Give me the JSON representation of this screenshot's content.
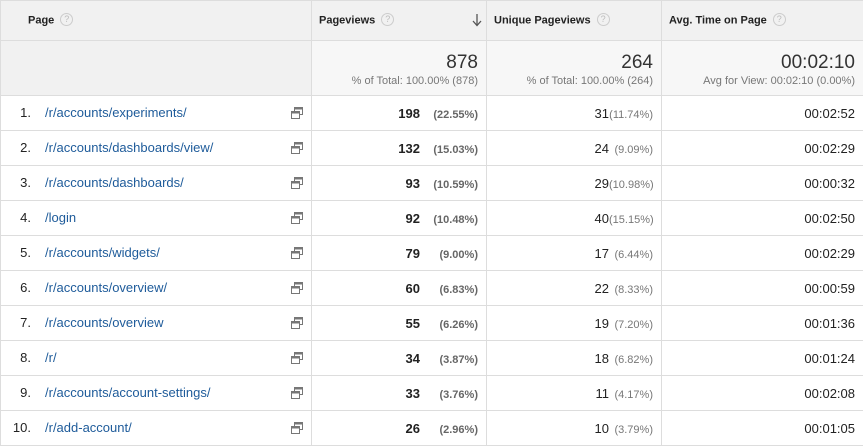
{
  "columns": {
    "page": "Page",
    "pageviews": "Pageviews",
    "unique_pageviews": "Unique Pageviews",
    "avg_time": "Avg. Time on Page",
    "help_glyph": "?"
  },
  "totals": {
    "pageviews": "878",
    "pageviews_sub": "% of Total: 100.00% (878)",
    "unique_pageviews": "264",
    "unique_pageviews_sub": "% of Total: 100.00% (264)",
    "avg_time": "00:02:10",
    "avg_time_sub": "Avg for View: 00:02:10 (0.00%)"
  },
  "rows": [
    {
      "idx": "1.",
      "page": "/r/accounts/experiments/",
      "pv": "198",
      "pv_pct": "(22.55%)",
      "upv": "31",
      "upv_pct": "(11.74%)",
      "avg": "00:02:52"
    },
    {
      "idx": "2.",
      "page": "/r/accounts/dashboards/view/",
      "pv": "132",
      "pv_pct": "(15.03%)",
      "upv": "24",
      "upv_pct": "(9.09%)",
      "avg": "00:02:29"
    },
    {
      "idx": "3.",
      "page": "/r/accounts/dashboards/",
      "pv": "93",
      "pv_pct": "(10.59%)",
      "upv": "29",
      "upv_pct": "(10.98%)",
      "avg": "00:00:32"
    },
    {
      "idx": "4.",
      "page": "/login",
      "pv": "92",
      "pv_pct": "(10.48%)",
      "upv": "40",
      "upv_pct": "(15.15%)",
      "avg": "00:02:50"
    },
    {
      "idx": "5.",
      "page": "/r/accounts/widgets/",
      "pv": "79",
      "pv_pct": "(9.00%)",
      "upv": "17",
      "upv_pct": "(6.44%)",
      "avg": "00:02:29"
    },
    {
      "idx": "6.",
      "page": "/r/accounts/overview/",
      "pv": "60",
      "pv_pct": "(6.83%)",
      "upv": "22",
      "upv_pct": "(8.33%)",
      "avg": "00:00:59"
    },
    {
      "idx": "7.",
      "page": "/r/accounts/overview",
      "pv": "55",
      "pv_pct": "(6.26%)",
      "upv": "19",
      "upv_pct": "(7.20%)",
      "avg": "00:01:36"
    },
    {
      "idx": "8.",
      "page": "/r/",
      "pv": "34",
      "pv_pct": "(3.87%)",
      "upv": "18",
      "upv_pct": "(6.82%)",
      "avg": "00:01:24"
    },
    {
      "idx": "9.",
      "page": "/r/accounts/account-settings/",
      "pv": "33",
      "pv_pct": "(3.76%)",
      "upv": "11",
      "upv_pct": "(4.17%)",
      "avg": "00:02:08"
    },
    {
      "idx": "10.",
      "page": "/r/add-account/",
      "pv": "26",
      "pv_pct": "(2.96%)",
      "upv": "10",
      "upv_pct": "(3.79%)",
      "avg": "00:01:05"
    }
  ],
  "icons": {
    "help": "help-circle-icon",
    "sort": "arrow-down-icon",
    "external": "open-in-new-window-icon"
  },
  "colors": {
    "link": "#1e5b9a",
    "header_bg": "#f1f1f1",
    "totals_bg": "#f7f7f7",
    "border": "#dddddd"
  }
}
